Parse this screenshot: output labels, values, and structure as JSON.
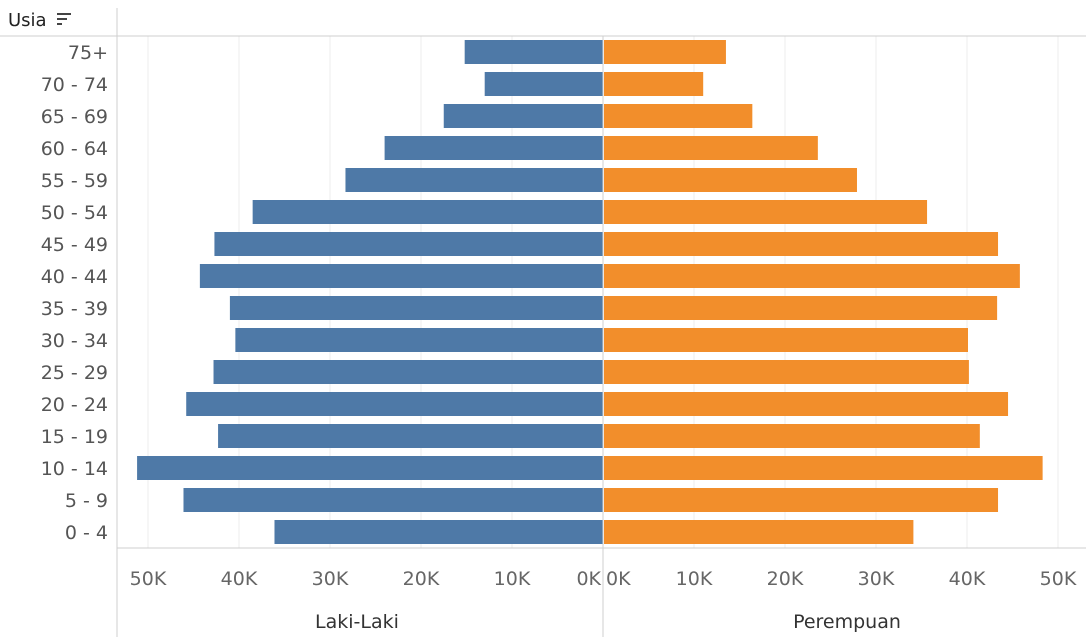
{
  "header": {
    "row_field": "Usia"
  },
  "icons": {
    "sort": "sort-descending-icon"
  },
  "colors": {
    "male": "#4e79a7",
    "female": "#f28e2b"
  },
  "chart_data": {
    "type": "bar",
    "orientation": "horizontal",
    "subtype": "population-pyramid",
    "categories": [
      "75+",
      "70 - 74",
      "65 - 69",
      "60 - 64",
      "55 - 59",
      "50 - 54",
      "45 - 49",
      "40 - 44",
      "35 - 39",
      "30 - 34",
      "25 - 29",
      "20 - 24",
      "15 - 19",
      "10 - 14",
      "5 - 9",
      "0 - 4"
    ],
    "series": [
      {
        "name": "Laki-Laki",
        "color": "#4e79a7",
        "values": [
          15200,
          13000,
          17500,
          24000,
          28300,
          38500,
          42700,
          44300,
          41000,
          40400,
          42800,
          45800,
          42300,
          51200,
          46100,
          36100
        ]
      },
      {
        "name": "Perempuan",
        "color": "#f28e2b",
        "values": [
          13400,
          10900,
          16300,
          23500,
          27800,
          35500,
          43300,
          45700,
          43200,
          40000,
          40100,
          44400,
          41300,
          48200,
          43300,
          34000
        ]
      }
    ],
    "xlim": [
      0,
      50000
    ],
    "xticks": [
      "50K",
      "40K",
      "30K",
      "20K",
      "10K",
      "0K"
    ],
    "xticks_right": [
      "0K",
      "10K",
      "20K",
      "30K",
      "40K",
      "50K"
    ],
    "ylabel": "Usia",
    "grid": true
  }
}
